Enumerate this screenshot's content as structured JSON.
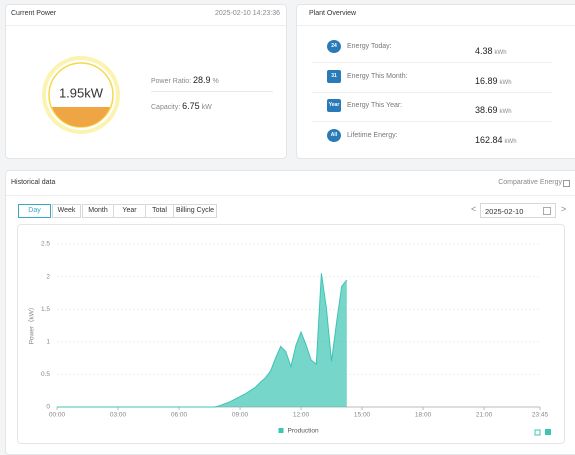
{
  "current_power": {
    "title": "Current Power",
    "timestamp": "2025-02-10 14:23:36",
    "gauge": "1.95kW",
    "power_ratio_label": "Power Ratio:",
    "power_ratio_value": "28.9",
    "power_ratio_unit": "%",
    "capacity_label": "Capacity:",
    "capacity_value": "6.75",
    "capacity_unit": "kW"
  },
  "plant_overview": {
    "title": "Plant Overview",
    "rows": [
      {
        "icon": "24",
        "label": "Energy Today:",
        "value": "4.38",
        "unit": "kWh"
      },
      {
        "icon": "31",
        "label": "Energy This Month:",
        "value": "16.89",
        "unit": "kWh"
      },
      {
        "icon": "Year",
        "label": "Energy This Year:",
        "value": "38.69",
        "unit": "kWh"
      },
      {
        "icon": "All",
        "label": "Lifetime Energy:",
        "value": "162.84",
        "unit": "kWh"
      }
    ]
  },
  "historical": {
    "title": "Historical data",
    "comparative": "Comparative Energy",
    "tabs": [
      "Day",
      "Week",
      "Month",
      "Year",
      "Total",
      "Billing Cycle"
    ],
    "date": "2025-02-10"
  },
  "chart_data": {
    "type": "area",
    "y_label": "Power（kW）",
    "x": [
      "00:00",
      "07:30",
      "07:45",
      "08:00",
      "08:15",
      "08:30",
      "08:45",
      "09:00",
      "09:15",
      "09:30",
      "09:45",
      "10:00",
      "10:15",
      "10:30",
      "10:45",
      "11:00",
      "11:15",
      "11:30",
      "11:45",
      "12:00",
      "12:15",
      "12:30",
      "12:45",
      "13:00",
      "13:15",
      "13:30",
      "13:45",
      "14:00",
      "14:15"
    ],
    "series": [
      {
        "name": "Production",
        "color": "#3cc4b4",
        "values": [
          0,
          0,
          0,
          0.02,
          0.05,
          0.08,
          0.12,
          0.16,
          0.2,
          0.25,
          0.3,
          0.38,
          0.45,
          0.55,
          0.75,
          0.93,
          0.85,
          0.62,
          0.95,
          1.15,
          0.95,
          0.72,
          0.66,
          2.05,
          1.5,
          0.7,
          1.3,
          1.85,
          1.95
        ]
      }
    ],
    "xlim": [
      "00:00",
      "23:45"
    ],
    "xticks": [
      "00:00",
      "03:00",
      "06:00",
      "09:00",
      "12:00",
      "15:00",
      "18:00",
      "21:00",
      "23:45"
    ],
    "ylim": [
      0,
      2.5
    ],
    "yticks": [
      0,
      0.5,
      1,
      1.5,
      2,
      2.5
    ],
    "grid": true,
    "legend": "bottom"
  }
}
